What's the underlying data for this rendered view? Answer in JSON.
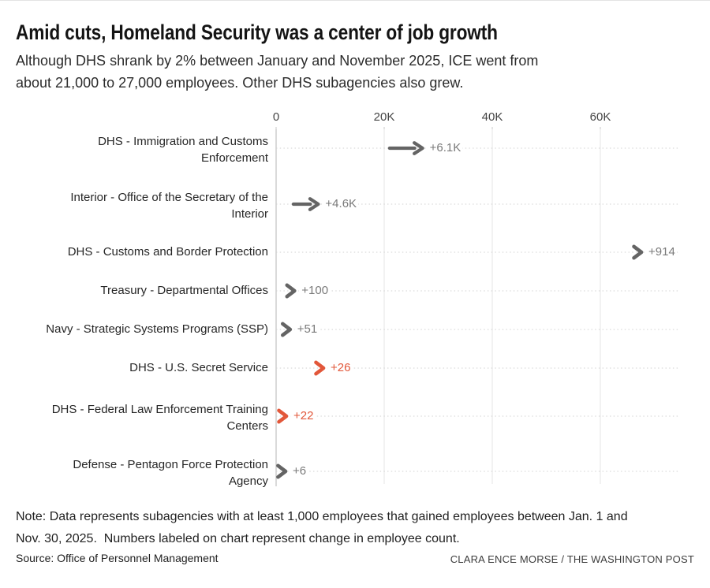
{
  "page": {
    "title": "Amid cuts, Homeland Security was a center of job growth",
    "subtitle": "Although DHS shrank by 2% between January and November 2025, ICE went from\nabout 21,000 to 27,000 employees. Other DHS subagencies also grew.",
    "note": "Note: Data represents subagencies with at least 1,000 employees that gained employees between Jan. 1 and\nNov. 30, 2025.  Numbers labeled on chart represent change in employee count.",
    "source": "Source: Office of Personnel Management",
    "credit": "CLARA ENCE MORSE / THE WASHINGTON POST"
  },
  "colors": {
    "accent_orange": "#e2573a",
    "arrow_gray": "#646464",
    "value_gray": "#7a7a7a",
    "gridline": "#e4e4e4",
    "zero_axis": "#b5b5b5",
    "tick": "#c9c9c9",
    "dotted_row_line": "#d2d2d2"
  },
  "chart_data": {
    "type": "arrow",
    "variant": "dumbbell-change",
    "description": "Arrows show change in employee count per federal subagency from Jan. 1 to Nov. 30, 2025; arrow runs from starting headcount to ending headcount.",
    "x_axis": {
      "tick_labels": [
        "0",
        "20K",
        "40K",
        "60K"
      ],
      "tick_values": [
        0,
        20000,
        40000,
        60000
      ],
      "range": [
        0,
        75000
      ],
      "unit": "employees"
    },
    "grid": true,
    "legend": false,
    "rows": [
      {
        "label_lines": [
          "DHS - Immigration and Customs",
          "Enforcement"
        ],
        "change_label": "+6.1K",
        "change": 6100,
        "start": 21000,
        "end": 27100,
        "highlighted": false
      },
      {
        "label_lines": [
          "Interior - Office of the Secretary of the",
          "Interior"
        ],
        "change_label": "+4.6K",
        "change": 4600,
        "start": 3200,
        "end": 7800,
        "highlighted": false
      },
      {
        "label_lines": [
          "DHS - Customs and Border Protection"
        ],
        "change_label": "+914",
        "change": 914,
        "start": 66700,
        "end": 67600,
        "highlighted": false
      },
      {
        "label_lines": [
          "Treasury - Departmental Offices"
        ],
        "change_label": "+100",
        "change": 100,
        "start": 3300,
        "end": 3400,
        "highlighted": false
      },
      {
        "label_lines": [
          "Navy - Strategic Systems Programs (SSP)"
        ],
        "change_label": "+51",
        "change": 51,
        "start": 2550,
        "end": 2600,
        "highlighted": false
      },
      {
        "label_lines": [
          "DHS - U.S. Secret Service"
        ],
        "change_label": "+26",
        "change": 26,
        "start": 8730,
        "end": 8760,
        "highlighted": true
      },
      {
        "label_lines": [
          "DHS - Federal Law Enforcement Training",
          "Centers"
        ],
        "change_label": "+22",
        "change": 22,
        "start": 1880,
        "end": 1900,
        "highlighted": true
      },
      {
        "label_lines": [
          "Defense - Pentagon Force Protection",
          "Agency"
        ],
        "change_label": "+6",
        "change": 6,
        "start": 1745,
        "end": 1750,
        "highlighted": false
      }
    ]
  }
}
